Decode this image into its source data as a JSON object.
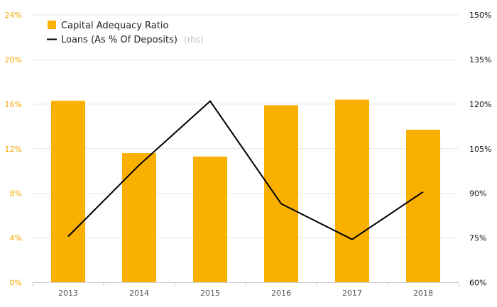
{
  "chart_data": {
    "type": "bar+line",
    "categories": [
      "2013",
      "2014",
      "2015",
      "2016",
      "2017",
      "2018"
    ],
    "series": [
      {
        "name": "Capital Adequacy Ratio",
        "type": "bar",
        "axis": "left",
        "color": "#f9b000",
        "values": [
          16.3,
          11.6,
          11.3,
          15.9,
          16.4,
          13.7
        ]
      },
      {
        "name": "Loans (As % Of Deposits)",
        "type": "line",
        "axis": "right",
        "color": "#000000",
        "values": [
          75.5,
          99.5,
          121,
          86.5,
          74.5,
          90.5
        ]
      }
    ],
    "y_left": {
      "min": 0,
      "max": 24,
      "ticks": [
        "0%",
        "4%",
        "8%",
        "12%",
        "16%",
        "20%",
        "24%"
      ],
      "color": "#f2a900"
    },
    "y_right": {
      "min": 60,
      "max": 150,
      "ticks": [
        "60%",
        "75%",
        "90%",
        "105%",
        "120%",
        "135%",
        "150%"
      ],
      "color": "#111111"
    },
    "legend": {
      "position": "top-left",
      "bar_label": "Capital Adequacy Ratio",
      "line_label": "Loans (As % Of Deposits)",
      "line_note": "(rhs)"
    },
    "grid": true
  }
}
